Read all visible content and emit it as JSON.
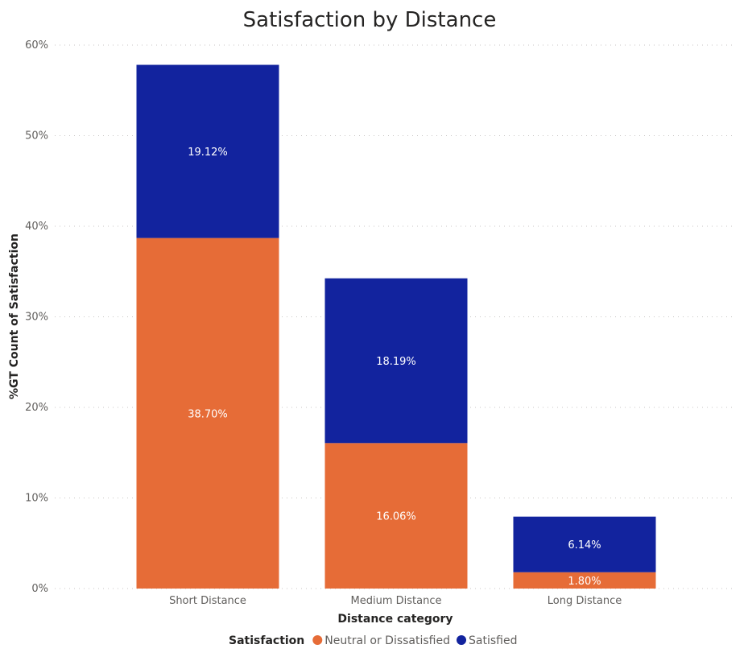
{
  "chart_data": {
    "type": "bar",
    "stacked": true,
    "title": "Satisfaction by Distance",
    "xlabel": "Distance category",
    "ylabel": "%GT Count of Satisfaction",
    "ylim": [
      0,
      60
    ],
    "yticks": [
      "0%",
      "10%",
      "20%",
      "30%",
      "40%",
      "50%",
      "60%"
    ],
    "categories": [
      "Short Distance",
      "Medium Distance",
      "Long Distance"
    ],
    "series": [
      {
        "name": "Neutral or Dissatisfied",
        "color": "#e66c37",
        "values": [
          38.7,
          16.06,
          1.8
        ],
        "labels": [
          "38.70%",
          "16.06%",
          "1.80%"
        ]
      },
      {
        "name": "Satisfied",
        "color": "#12239e",
        "values": [
          19.12,
          18.19,
          6.14
        ],
        "labels": [
          "19.12%",
          "18.19%",
          "6.14%"
        ]
      }
    ],
    "grid": true,
    "legend": {
      "title": "Satisfaction",
      "position": "bottom"
    }
  }
}
